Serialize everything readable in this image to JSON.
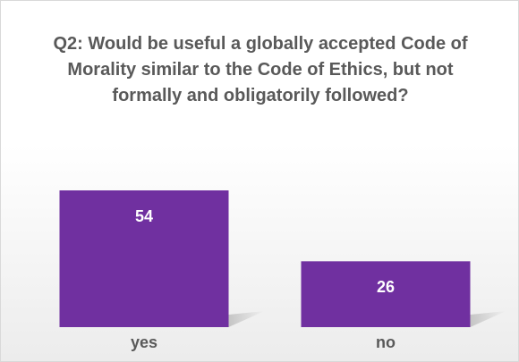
{
  "chart_data": {
    "type": "bar",
    "title": "Q2: Would be useful a globally accepted Code of Morality similar to the Code of Ethics, but not formally and obligatorily followed?",
    "categories": [
      "yes",
      "no"
    ],
    "values": [
      54,
      26
    ],
    "color": "#7030a0"
  }
}
